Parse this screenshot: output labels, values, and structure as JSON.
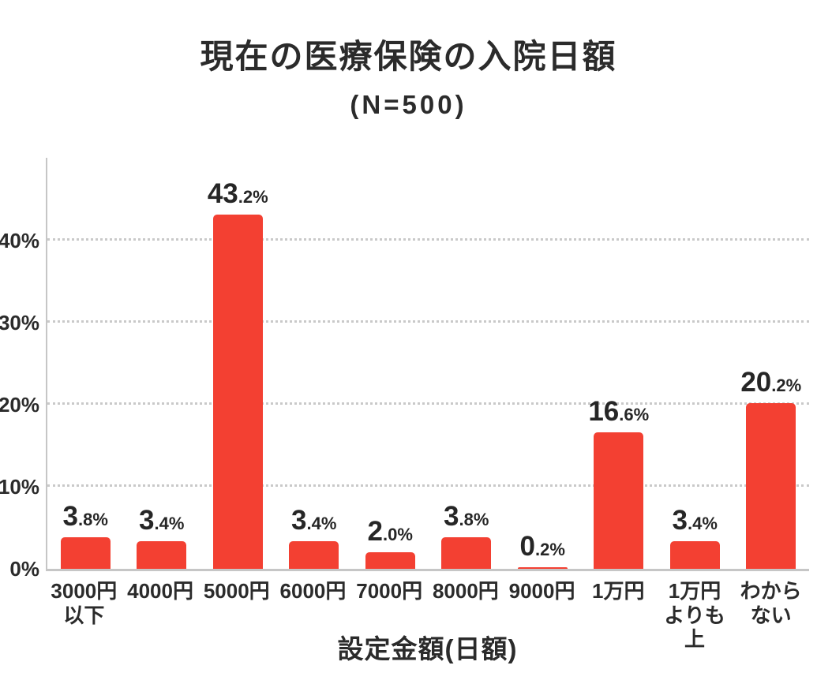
{
  "chart_data": {
    "type": "bar",
    "title": "現在の医療保険の入院日額",
    "subtitle": "(N=500)",
    "xlabel": "設定金額(日額)",
    "ylabel": "",
    "categories": [
      "3000円以下",
      "4000円",
      "5000円",
      "6000円",
      "7000円",
      "8000円",
      "9000円",
      "1万円",
      "1万円よりも上",
      "わからない"
    ],
    "category_lines": [
      [
        "3000円",
        "以下"
      ],
      [
        "4000円"
      ],
      [
        "5000円"
      ],
      [
        "6000円"
      ],
      [
        "7000円"
      ],
      [
        "8000円"
      ],
      [
        "9000円"
      ],
      [
        "1万円"
      ],
      [
        "1万円",
        "よりも上"
      ],
      [
        "わから",
        "ない"
      ]
    ],
    "values": [
      3.8,
      3.4,
      43.2,
      3.4,
      2.0,
      3.8,
      0.2,
      16.6,
      3.4,
      20.2
    ],
    "value_labels": [
      "3.8%",
      "3.4%",
      "43.2%",
      "3.4%",
      "2.0%",
      "3.8%",
      "0.2%",
      "16.6%",
      "3.4%",
      "20.2%"
    ],
    "unit": "%",
    "ylim": [
      0,
      50.4
    ],
    "yticks": [
      {
        "value": 0,
        "label": "0%"
      },
      {
        "value": 10,
        "label": "10%"
      },
      {
        "value": 20,
        "label": "20%"
      },
      {
        "value": 30,
        "label": "30%"
      },
      {
        "value": 40,
        "label": "40%"
      }
    ],
    "grid": "horizontal-dotted",
    "legend": "none",
    "colors": {
      "bar": "#F34032",
      "text": "#2B2B2B",
      "grid": "#C9C9C9",
      "axis": "#C6C6C6",
      "background": "#FFFFFF"
    }
  }
}
